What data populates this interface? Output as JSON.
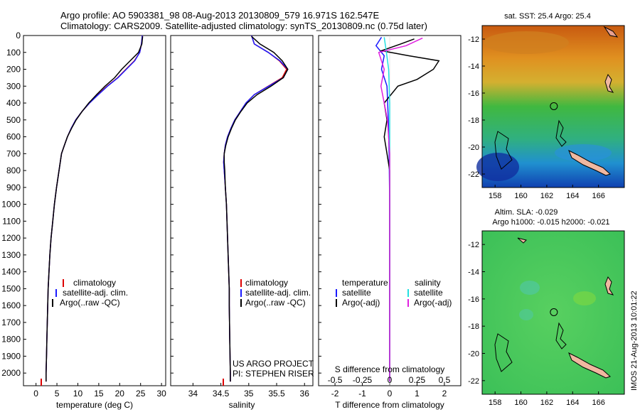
{
  "header": {
    "line1": "Argo profile: AO 5903381_98 08-Aug-2013 20130809_579 16.971S 162.547E",
    "line2": "Climatology: CARS2009. Satellite-adjusted climatology: synTS_20130809.nc (0.75d later)"
  },
  "panels": {
    "temperature": {
      "xlabel": "temperature (deg C)",
      "xticks": [
        0,
        5,
        10,
        15,
        20,
        25,
        30
      ],
      "legend": [
        "climatology",
        "satellite-adj. clim.",
        "Argo(..raw -QC)"
      ]
    },
    "salinity": {
      "xlabel": "salinity",
      "xticks": [
        34,
        34.5,
        35,
        35.5,
        36
      ],
      "legend": [
        "climatology",
        "satellite-adj. clim.",
        "Argo(..raw -QC)"
      ],
      "credit1": "US ARGO PROJECT",
      "credit2": "PI: STEPHEN RISER"
    },
    "difference": {
      "top_xlabel": "S difference from climatology",
      "top_xticks": [
        "-0.5",
        "-0.25",
        "0",
        "0.25",
        "0.5"
      ],
      "xlabel": "T difference from climatology",
      "xticks": [
        -2,
        -1,
        0,
        1,
        2
      ],
      "legend_left_title": "temperature",
      "legend_left": [
        "satellite",
        "Argo(-adj)"
      ],
      "legend_right_title": "salinity",
      "legend_right": [
        "satellite",
        "Argo(-adj)"
      ]
    }
  },
  "depth_axis": {
    "ticks": [
      0,
      100,
      200,
      300,
      400,
      500,
      600,
      700,
      800,
      900,
      1000,
      1100,
      1200,
      1300,
      1400,
      1500,
      1600,
      1700,
      1800,
      1900,
      2000
    ],
    "range": [
      0,
      2075
    ]
  },
  "maps": {
    "top_title": "sat. SST: 25.4  Argo: 25.4",
    "bottom_title1": "Altim. SLA: -0.029",
    "bottom_title2": "Argo h1000: -0.015 h2000: -0.021",
    "lon_ticks": [
      158,
      160,
      162,
      164,
      166
    ],
    "lat_ticks": [
      -12,
      -14,
      -16,
      -18,
      -20,
      -22
    ],
    "lon_range": [
      157,
      168
    ],
    "lat_range": [
      -11,
      -23
    ],
    "float_position": {
      "lon": 162.547,
      "lat": -16.971
    },
    "timestamp": "IMOS 21-Aug-2013 10:01:22"
  },
  "colors": {
    "climatology": "#dd0000",
    "satellite": "#1a1aff",
    "argo": "#000000",
    "salinity_satellite": "#22e0e0",
    "salinity_argo": "#e020e0"
  },
  "chart_data": [
    {
      "type": "line",
      "title": "",
      "xlabel": "temperature (deg C)",
      "ylabel": "",
      "xlim": [
        -3,
        31
      ],
      "ylim": [
        2075,
        0
      ],
      "series": [
        {
          "name": "climatology",
          "points": [
            [
              25.4,
              0
            ],
            [
              25.2,
              50
            ],
            [
              24.8,
              100
            ],
            [
              23.5,
              150
            ],
            [
              21.5,
              200
            ],
            [
              19.5,
              250
            ],
            [
              17.0,
              300
            ],
            [
              14.8,
              350
            ],
            [
              12.8,
              400
            ],
            [
              11.0,
              450
            ],
            [
              9.5,
              500
            ],
            [
              8.4,
              550
            ],
            [
              7.5,
              600
            ],
            [
              6.8,
              650
            ],
            [
              6.1,
              700
            ],
            [
              5.5,
              800
            ],
            [
              4.9,
              900
            ],
            [
              4.4,
              1000
            ],
            [
              4.0,
              1100
            ],
            [
              3.6,
              1200
            ],
            [
              3.3,
              1300
            ],
            [
              3.1,
              1400
            ],
            [
              2.9,
              1500
            ],
            [
              2.8,
              1600
            ],
            [
              2.7,
              1700
            ],
            [
              2.6,
              1800
            ],
            [
              2.5,
              1900
            ],
            [
              2.4,
              2000
            ],
            [
              2.4,
              2050
            ]
          ]
        },
        {
          "name": "satellite-adj. clim.",
          "points": [
            [
              25.4,
              0
            ],
            [
              25.2,
              50
            ],
            [
              24.8,
              100
            ],
            [
              23.6,
              150
            ],
            [
              21.6,
              200
            ],
            [
              19.6,
              250
            ],
            [
              17.1,
              300
            ],
            [
              14.9,
              350
            ],
            [
              12.8,
              400
            ],
            [
              11.0,
              450
            ],
            [
              9.5,
              500
            ],
            [
              8.4,
              550
            ],
            [
              7.5,
              600
            ],
            [
              6.8,
              650
            ],
            [
              6.1,
              700
            ],
            [
              5.5,
              800
            ],
            [
              4.9,
              900
            ],
            [
              4.4,
              1000
            ],
            [
              4.0,
              1100
            ],
            [
              3.6,
              1200
            ],
            [
              3.3,
              1300
            ],
            [
              3.1,
              1400
            ],
            [
              2.9,
              1500
            ],
            [
              2.8,
              1600
            ],
            [
              2.7,
              1700
            ],
            [
              2.6,
              1800
            ],
            [
              2.5,
              1900
            ],
            [
              2.4,
              2000
            ],
            [
              2.4,
              2050
            ]
          ]
        },
        {
          "name": "Argo(..raw -QC)",
          "points": [
            [
              25.5,
              5
            ],
            [
              25.3,
              50
            ],
            [
              24.5,
              100
            ],
            [
              22.5,
              150
            ],
            [
              20.5,
              200
            ],
            [
              18.8,
              250
            ],
            [
              16.5,
              300
            ],
            [
              14.5,
              350
            ],
            [
              12.6,
              400
            ],
            [
              11.0,
              450
            ],
            [
              9.6,
              500
            ],
            [
              8.5,
              550
            ],
            [
              7.5,
              600
            ],
            [
              6.8,
              650
            ],
            [
              6.1,
              700
            ],
            [
              5.5,
              800
            ],
            [
              4.9,
              900
            ],
            [
              4.4,
              1000
            ],
            [
              4.0,
              1100
            ],
            [
              3.6,
              1200
            ],
            [
              3.3,
              1300
            ],
            [
              3.1,
              1400
            ],
            [
              2.9,
              1500
            ],
            [
              2.8,
              1600
            ],
            [
              2.7,
              1700
            ],
            [
              2.6,
              1800
            ],
            [
              2.5,
              1900
            ],
            [
              2.4,
              2000
            ],
            [
              2.4,
              2050
            ]
          ]
        }
      ]
    },
    {
      "type": "line",
      "title": "",
      "xlabel": "salinity",
      "ylabel": "",
      "xlim": [
        33.6,
        36.15
      ],
      "ylim": [
        2075,
        0
      ],
      "series": [
        {
          "name": "climatology",
          "points": [
            [
              35.05,
              0
            ],
            [
              35.1,
              50
            ],
            [
              35.35,
              100
            ],
            [
              35.55,
              150
            ],
            [
              35.68,
              200
            ],
            [
              35.6,
              250
            ],
            [
              35.35,
              300
            ],
            [
              35.1,
              350
            ],
            [
              34.95,
              400
            ],
            [
              34.85,
              450
            ],
            [
              34.75,
              500
            ],
            [
              34.68,
              550
            ],
            [
              34.62,
              600
            ],
            [
              34.58,
              650
            ],
            [
              34.56,
              700
            ],
            [
              34.55,
              750
            ],
            [
              34.56,
              800
            ],
            [
              34.58,
              900
            ],
            [
              34.6,
              1000
            ],
            [
              34.61,
              1100
            ],
            [
              34.62,
              1200
            ],
            [
              34.63,
              1300
            ],
            [
              34.64,
              1400
            ],
            [
              34.65,
              1500
            ],
            [
              34.65,
              1600
            ],
            [
              34.66,
              1800
            ],
            [
              34.67,
              2000
            ],
            [
              34.67,
              2050
            ]
          ]
        },
        {
          "name": "satellite-adj. clim.",
          "points": [
            [
              35.05,
              0
            ],
            [
              35.1,
              50
            ],
            [
              35.35,
              100
            ],
            [
              35.56,
              150
            ],
            [
              35.7,
              200
            ],
            [
              35.62,
              250
            ],
            [
              35.36,
              300
            ],
            [
              35.1,
              350
            ],
            [
              34.95,
              400
            ],
            [
              34.85,
              450
            ],
            [
              34.75,
              500
            ],
            [
              34.68,
              550
            ],
            [
              34.62,
              600
            ],
            [
              34.58,
              650
            ],
            [
              34.56,
              700
            ],
            [
              34.55,
              750
            ],
            [
              34.56,
              800
            ],
            [
              34.58,
              900
            ],
            [
              34.6,
              1000
            ],
            [
              34.61,
              1100
            ],
            [
              34.62,
              1200
            ],
            [
              34.63,
              1300
            ],
            [
              34.64,
              1400
            ],
            [
              34.65,
              1500
            ],
            [
              34.65,
              1600
            ],
            [
              34.66,
              1800
            ],
            [
              34.67,
              2000
            ],
            [
              34.67,
              2050
            ]
          ]
        },
        {
          "name": "Argo(..raw -QC)",
          "points": [
            [
              35.05,
              5
            ],
            [
              35.2,
              50
            ],
            [
              35.45,
              100
            ],
            [
              35.6,
              150
            ],
            [
              35.7,
              200
            ],
            [
              35.62,
              250
            ],
            [
              35.4,
              300
            ],
            [
              35.15,
              350
            ],
            [
              34.97,
              400
            ],
            [
              34.86,
              450
            ],
            [
              34.76,
              500
            ],
            [
              34.69,
              550
            ],
            [
              34.63,
              600
            ],
            [
              34.59,
              650
            ],
            [
              34.56,
              700
            ],
            [
              34.56,
              750
            ],
            [
              34.57,
              800
            ],
            [
              34.58,
              900
            ],
            [
              34.6,
              1000
            ],
            [
              34.61,
              1100
            ],
            [
              34.62,
              1200
            ],
            [
              34.63,
              1300
            ],
            [
              34.64,
              1400
            ],
            [
              34.65,
              1500
            ],
            [
              34.65,
              1600
            ],
            [
              34.66,
              1800
            ],
            [
              34.67,
              2000
            ],
            [
              34.67,
              2050
            ]
          ]
        }
      ]
    },
    {
      "type": "line",
      "title": "",
      "xlabel": "T difference from climatology",
      "ylabel": "",
      "xlim": [
        -2.6,
        2.6
      ],
      "ylim": [
        2075,
        0
      ],
      "series": [
        {
          "name": "temperature satellite",
          "points": [
            [
              -0.3,
              10
            ],
            [
              -0.5,
              60
            ],
            [
              -0.2,
              120
            ],
            [
              -0.3,
              200
            ],
            [
              -0.1,
              300
            ],
            [
              -0.05,
              500
            ],
            [
              -0.02,
              700
            ],
            [
              0,
              1000
            ],
            [
              0,
              1500
            ],
            [
              0,
              2050
            ]
          ]
        },
        {
          "name": "temperature Argo(-adj)",
          "points": [
            [
              0.9,
              20
            ],
            [
              0.4,
              50
            ],
            [
              -0.3,
              90
            ],
            [
              0.7,
              120
            ],
            [
              1.8,
              150
            ],
            [
              1.6,
              200
            ],
            [
              1.0,
              260
            ],
            [
              0.3,
              300
            ],
            [
              -0.2,
              400
            ],
            [
              -0.1,
              500
            ],
            [
              -0.2,
              600
            ],
            [
              -0.1,
              700
            ],
            [
              0,
              800
            ],
            [
              0,
              1000
            ],
            [
              0,
              1500
            ],
            [
              0,
              2050
            ]
          ]
        },
        {
          "name": "salinity satellite",
          "points": [
            [
              -0.05,
              10
            ],
            [
              -0.03,
              100
            ],
            [
              -0.01,
              200
            ],
            [
              0,
              400
            ],
            [
              0,
              2050
            ]
          ]
        },
        {
          "name": "salinity Argo(-adj)",
          "points": [
            [
              0.3,
              15
            ],
            [
              0.15,
              60
            ],
            [
              -0.1,
              100
            ],
            [
              -0.05,
              200
            ],
            [
              -0.08,
              300
            ],
            [
              -0.02,
              500
            ],
            [
              0,
              700
            ],
            [
              0,
              2050
            ]
          ]
        }
      ]
    }
  ]
}
